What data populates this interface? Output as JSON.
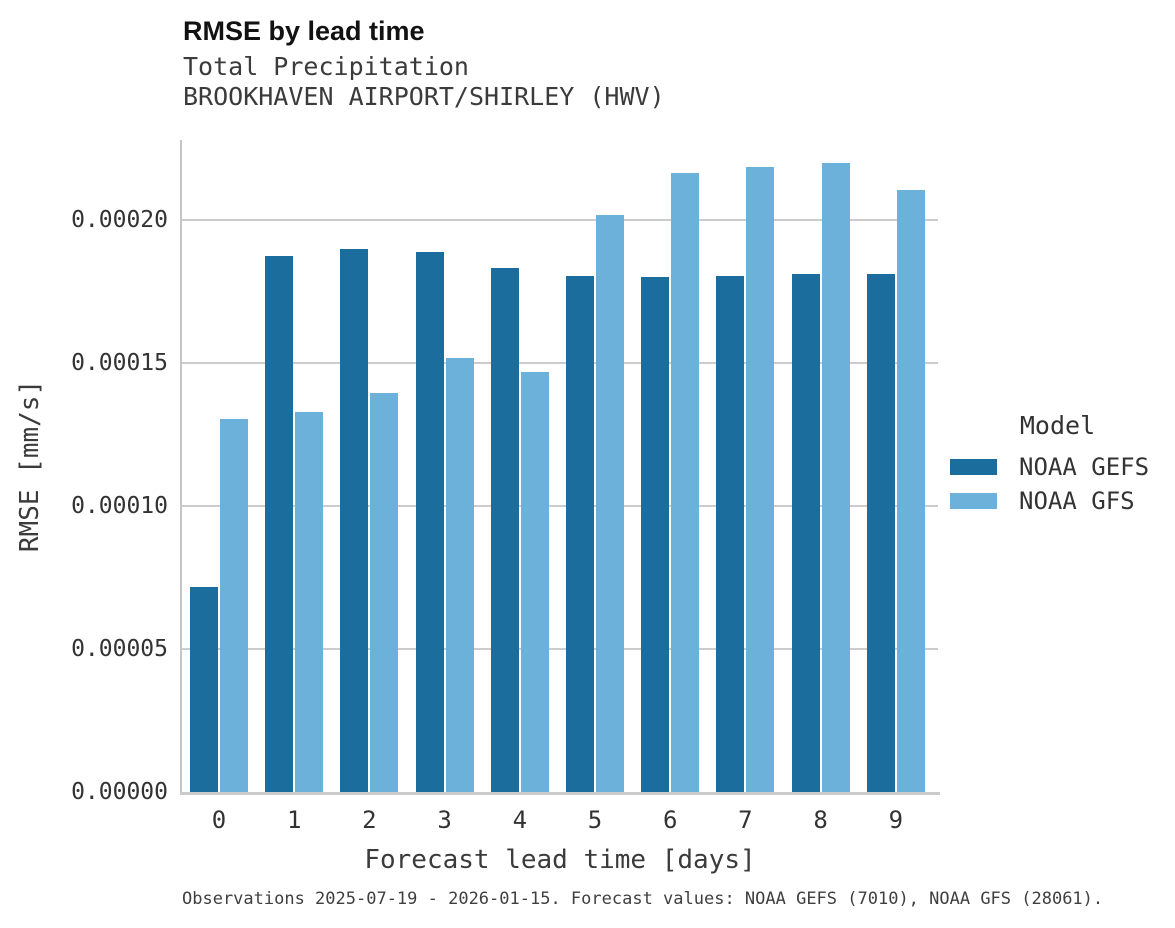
{
  "header": {
    "title": "RMSE by lead time",
    "subtitle_variable": "Total Precipitation",
    "subtitle_station": "BROOKHAVEN AIRPORT/SHIRLEY (HWV)"
  },
  "caption": "Observations 2025-07-19 - 2026-01-15. Forecast values: NOAA GEFS (7010), NOAA GFS (28061).",
  "colors": {
    "gefs_bar": "#1b6d9e",
    "gfs_bar": "#6cb1d9",
    "gridline": "#cccccc",
    "spine": "#c8c8c8",
    "text": "#333333"
  },
  "legend": {
    "title": "Model",
    "entries": [
      {
        "label": "NOAA GEFS",
        "color": "#1b6d9e"
      },
      {
        "label": "NOAA GFS",
        "color": "#6cb1d9"
      }
    ]
  },
  "chart_data": {
    "type": "bar",
    "title": "RMSE by lead time",
    "subtitle": "Total Precipitation — BROOKHAVEN AIRPORT/SHIRLEY (HWV)",
    "xlabel": "Forecast lead time [days]",
    "ylabel": "RMSE [mm/s]",
    "legend_title": "Model",
    "legend_position": "right",
    "grid": true,
    "categories": [
      "0",
      "1",
      "2",
      "3",
      "4",
      "5",
      "6",
      "7",
      "8",
      "9"
    ],
    "series": [
      {
        "name": "NOAA GEFS",
        "color": "#1b6d9e",
        "values": [
          7.17e-05,
          0.0001876,
          0.00019,
          0.0001887,
          0.0001833,
          0.0001806,
          0.00018,
          0.0001803,
          0.0001813,
          0.0001813
        ]
      },
      {
        "name": "NOAA GFS",
        "color": "#6cb1d9",
        "values": [
          0.0001305,
          0.000133,
          0.0001394,
          0.0001517,
          0.0001468,
          0.0002017,
          0.0002164,
          0.0002184,
          0.0002201,
          0.0002104
        ]
      }
    ],
    "ylim": [
      0,
      0.000228
    ],
    "yticks": [
      {
        "label": "0.00000",
        "value": 0.0
      },
      {
        "label": "0.00005",
        "value": 5e-05
      },
      {
        "label": "0.00010",
        "value": 0.0001
      },
      {
        "label": "0.00015",
        "value": 0.00015
      },
      {
        "label": "0.00020",
        "value": 0.0002
      }
    ]
  }
}
